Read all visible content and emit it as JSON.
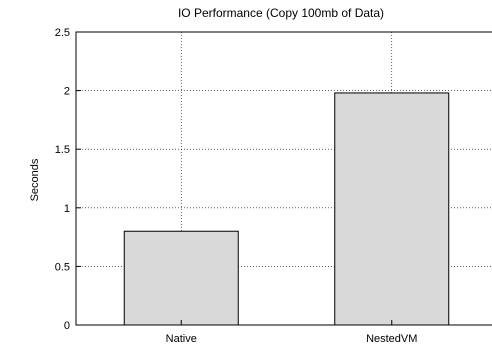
{
  "chart_data": {
    "type": "bar",
    "title": "IO Performance (Copy 100mb of Data)",
    "xlabel": "",
    "ylabel": "Seconds",
    "categories": [
      "Native",
      "NestedVM"
    ],
    "values": [
      0.8,
      1.98
    ],
    "ylim": [
      0,
      2.5
    ],
    "yticks": [
      "0",
      "0.5",
      "1",
      "1.5",
      "2",
      "2.5"
    ],
    "grid": true,
    "bar_color": "#d9d9d9"
  }
}
